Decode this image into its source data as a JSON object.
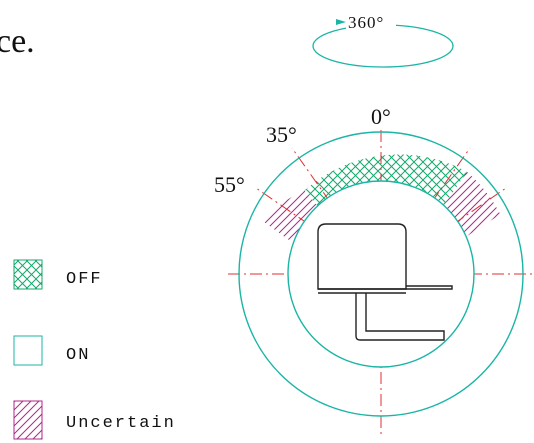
{
  "fragment_text": "ce.",
  "rotation_label": "360°",
  "angle_labels": {
    "zero": "0°",
    "thirty_five": "35°",
    "fifty_five": "55°"
  },
  "legend": [
    {
      "label": "OFF",
      "pattern": "cross-hatch"
    },
    {
      "label": "ON",
      "pattern": "none"
    },
    {
      "label": "Uncertain",
      "pattern": "diagonal-hatch"
    }
  ],
  "colors": {
    "outline": "#1bb5a5",
    "off_hatch": "#12a86a",
    "uncertain_hatch": "#b0278a",
    "centerline": "#e03030",
    "device": "#222222"
  }
}
